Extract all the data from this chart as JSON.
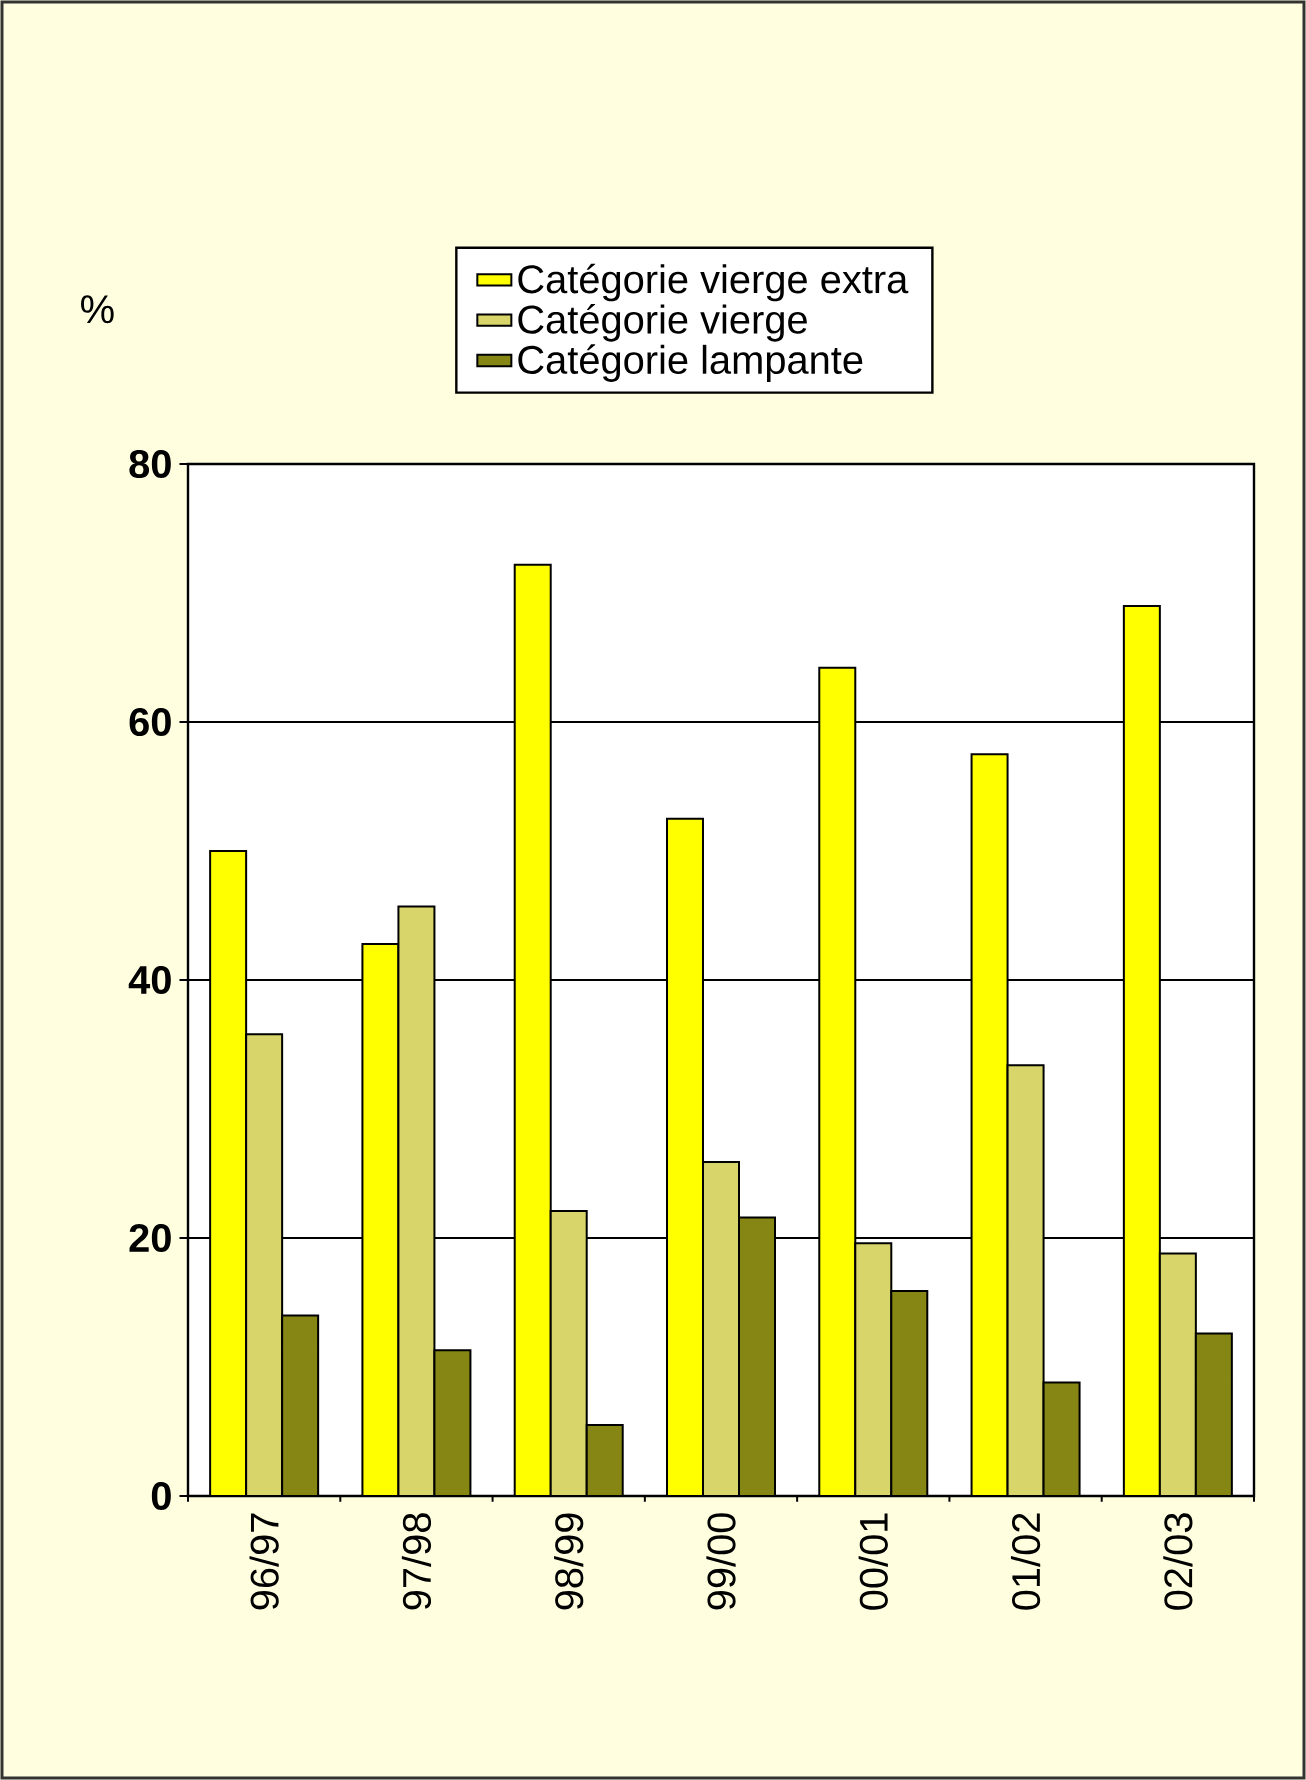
{
  "chart_data": {
    "type": "bar",
    "ylabel": "%",
    "categories": [
      "96/97",
      "97/98",
      "98/99",
      "99/00",
      "00/01",
      "01/02",
      "02/03"
    ],
    "series": [
      {
        "name": "Catégorie vierge extra",
        "color": "#ffff00",
        "values": [
          50.0,
          42.8,
          72.2,
          52.5,
          64.2,
          57.5,
          69.0
        ]
      },
      {
        "name": "Catégorie vierge",
        "color": "#d8d66a",
        "values": [
          35.8,
          45.7,
          22.1,
          25.9,
          19.6,
          33.4,
          18.8
        ]
      },
      {
        "name": "Catégorie lampante",
        "color": "#868614",
        "values": [
          14.0,
          11.3,
          5.5,
          21.6,
          15.9,
          8.8,
          12.6
        ]
      }
    ],
    "ylim": [
      0,
      80
    ],
    "yticks": [
      0,
      20,
      40,
      60,
      80
    ],
    "grid": "y",
    "legend": "top"
  }
}
